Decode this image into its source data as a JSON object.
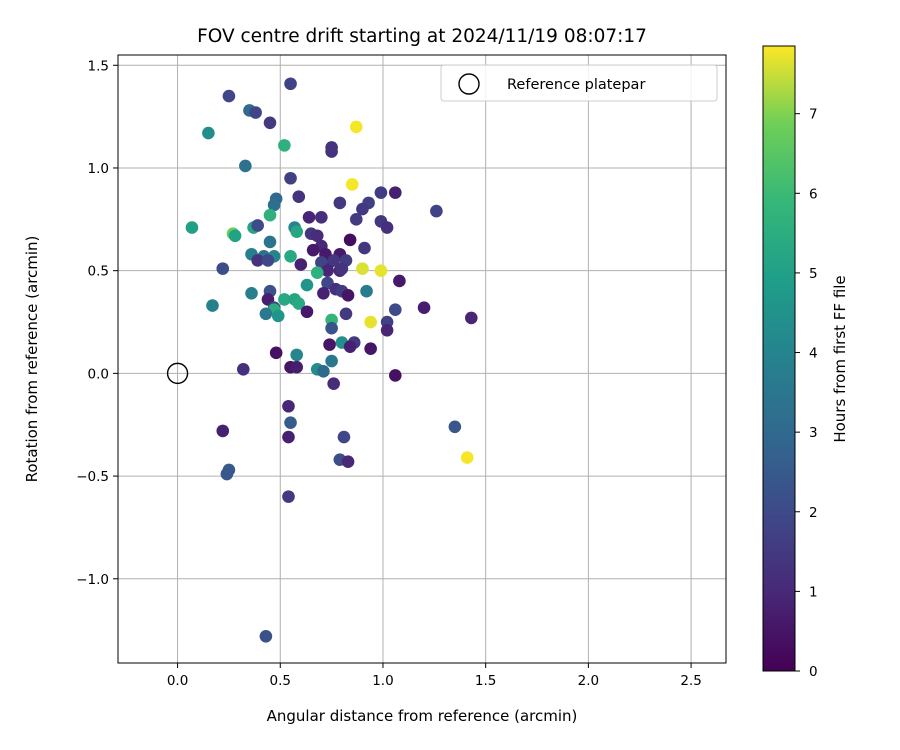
{
  "chart_data": {
    "type": "scatter",
    "title": "FOV centre drift starting at 2024/11/19 08:07:17",
    "xlabel": "Angular distance from reference (arcmin)",
    "ylabel": "Rotation from reference (arcmin)",
    "xlim": [
      -0.29,
      2.67
    ],
    "ylim": [
      -1.41,
      1.55
    ],
    "xticks": [
      "0.0",
      "0.5",
      "1.0",
      "1.5",
      "2.0",
      "2.5"
    ],
    "yticks": [
      "1.5",
      "1.0",
      "0.5",
      "0.0",
      "−0.5",
      "−1.0"
    ],
    "grid": true,
    "legend": {
      "position": "top-right",
      "label": "Reference platepar"
    },
    "colorbar": {
      "label": "Hours from first FF file",
      "range": [
        0,
        7.85
      ],
      "ticks": [
        "0",
        "1",
        "2",
        "3",
        "4",
        "5",
        "6",
        "7"
      ],
      "colormap": "viridis"
    },
    "reference_point": {
      "x": 0.0,
      "y": 0.0
    },
    "points": [
      {
        "x": 0.55,
        "y": 1.41,
        "h": 1.8
      },
      {
        "x": 0.25,
        "y": 1.35,
        "h": 1.9
      },
      {
        "x": 0.35,
        "y": 1.28,
        "h": 3.1
      },
      {
        "x": 0.38,
        "y": 1.27,
        "h": 1.9
      },
      {
        "x": 0.45,
        "y": 1.22,
        "h": 1.5
      },
      {
        "x": 0.15,
        "y": 1.17,
        "h": 4.3
      },
      {
        "x": 0.52,
        "y": 1.11,
        "h": 5.6
      },
      {
        "x": 0.75,
        "y": 1.1,
        "h": 1.3
      },
      {
        "x": 0.75,
        "y": 1.08,
        "h": 1.3
      },
      {
        "x": 0.87,
        "y": 1.2,
        "h": 7.8
      },
      {
        "x": 0.33,
        "y": 1.01,
        "h": 3.3
      },
      {
        "x": 0.55,
        "y": 0.95,
        "h": 1.7
      },
      {
        "x": 0.85,
        "y": 0.92,
        "h": 7.8
      },
      {
        "x": 0.99,
        "y": 0.88,
        "h": 1.6
      },
      {
        "x": 1.06,
        "y": 0.88,
        "h": 0.8
      },
      {
        "x": 0.48,
        "y": 0.85,
        "h": 3.0
      },
      {
        "x": 0.59,
        "y": 0.86,
        "h": 1.3
      },
      {
        "x": 0.47,
        "y": 0.82,
        "h": 3.2
      },
      {
        "x": 0.79,
        "y": 0.83,
        "h": 1.4
      },
      {
        "x": 0.93,
        "y": 0.83,
        "h": 1.7
      },
      {
        "x": 0.9,
        "y": 0.8,
        "h": 1.5
      },
      {
        "x": 1.26,
        "y": 0.79,
        "h": 1.8
      },
      {
        "x": 0.45,
        "y": 0.77,
        "h": 5.6
      },
      {
        "x": 0.64,
        "y": 0.76,
        "h": 0.9
      },
      {
        "x": 0.7,
        "y": 0.76,
        "h": 1.2
      },
      {
        "x": 0.87,
        "y": 0.75,
        "h": 1.6
      },
      {
        "x": 0.99,
        "y": 0.74,
        "h": 1.4
      },
      {
        "x": 1.02,
        "y": 0.71,
        "h": 1.2
      },
      {
        "x": 0.07,
        "y": 0.71,
        "h": 5.0
      },
      {
        "x": 0.37,
        "y": 0.71,
        "h": 5.2
      },
      {
        "x": 0.39,
        "y": 0.72,
        "h": 2.0
      },
      {
        "x": 0.57,
        "y": 0.71,
        "h": 4.0
      },
      {
        "x": 0.58,
        "y": 0.69,
        "h": 5.2
      },
      {
        "x": 0.27,
        "y": 0.68,
        "h": 6.8
      },
      {
        "x": 0.28,
        "y": 0.67,
        "h": 5.1
      },
      {
        "x": 0.65,
        "y": 0.68,
        "h": 1.4
      },
      {
        "x": 0.68,
        "y": 0.67,
        "h": 1.1
      },
      {
        "x": 0.45,
        "y": 0.64,
        "h": 3.4
      },
      {
        "x": 0.84,
        "y": 0.65,
        "h": 0.3
      },
      {
        "x": 0.7,
        "y": 0.62,
        "h": 1.0
      },
      {
        "x": 0.91,
        "y": 0.61,
        "h": 1.4
      },
      {
        "x": 0.66,
        "y": 0.6,
        "h": 0.6
      },
      {
        "x": 0.72,
        "y": 0.58,
        "h": 0.6
      },
      {
        "x": 0.79,
        "y": 0.58,
        "h": 0.6
      },
      {
        "x": 0.36,
        "y": 0.58,
        "h": 3.8
      },
      {
        "x": 0.42,
        "y": 0.57,
        "h": 3.3
      },
      {
        "x": 0.47,
        "y": 0.57,
        "h": 4.0
      },
      {
        "x": 0.55,
        "y": 0.57,
        "h": 5.3
      },
      {
        "x": 0.39,
        "y": 0.55,
        "h": 1.3
      },
      {
        "x": 0.44,
        "y": 0.55,
        "h": 1.9
      },
      {
        "x": 0.74,
        "y": 0.54,
        "h": 0.6
      },
      {
        "x": 0.76,
        "y": 0.55,
        "h": 1.4
      },
      {
        "x": 0.82,
        "y": 0.55,
        "h": 1.6
      },
      {
        "x": 0.7,
        "y": 0.54,
        "h": 1.8
      },
      {
        "x": 0.6,
        "y": 0.53,
        "h": 0.8
      },
      {
        "x": 0.22,
        "y": 0.51,
        "h": 2.1
      },
      {
        "x": 0.79,
        "y": 0.5,
        "h": 1.0
      },
      {
        "x": 0.73,
        "y": 0.5,
        "h": 0.9
      },
      {
        "x": 0.8,
        "y": 0.51,
        "h": 1.3
      },
      {
        "x": 0.9,
        "y": 0.51,
        "h": 7.6
      },
      {
        "x": 0.99,
        "y": 0.5,
        "h": 7.7
      },
      {
        "x": 0.68,
        "y": 0.49,
        "h": 5.6
      },
      {
        "x": 1.08,
        "y": 0.45,
        "h": 0.6
      },
      {
        "x": 0.73,
        "y": 0.44,
        "h": 1.9
      },
      {
        "x": 0.63,
        "y": 0.43,
        "h": 4.6
      },
      {
        "x": 0.77,
        "y": 0.41,
        "h": 1.2
      },
      {
        "x": 0.8,
        "y": 0.4,
        "h": 1.6
      },
      {
        "x": 0.83,
        "y": 0.38,
        "h": 0.5
      },
      {
        "x": 0.71,
        "y": 0.39,
        "h": 0.8
      },
      {
        "x": 0.36,
        "y": 0.39,
        "h": 3.8
      },
      {
        "x": 0.45,
        "y": 0.4,
        "h": 2.2
      },
      {
        "x": 0.92,
        "y": 0.4,
        "h": 3.7
      },
      {
        "x": 0.52,
        "y": 0.36,
        "h": 5.3
      },
      {
        "x": 0.57,
        "y": 0.36,
        "h": 5.2
      },
      {
        "x": 0.59,
        "y": 0.34,
        "h": 5.3
      },
      {
        "x": 0.44,
        "y": 0.36,
        "h": 0.7
      },
      {
        "x": 0.17,
        "y": 0.33,
        "h": 3.9
      },
      {
        "x": 0.47,
        "y": 0.32,
        "h": 1.7
      },
      {
        "x": 0.47,
        "y": 0.31,
        "h": 5.5
      },
      {
        "x": 0.63,
        "y": 0.3,
        "h": 0.6
      },
      {
        "x": 0.43,
        "y": 0.29,
        "h": 3.6
      },
      {
        "x": 0.49,
        "y": 0.28,
        "h": 4.6
      },
      {
        "x": 0.82,
        "y": 0.29,
        "h": 1.5
      },
      {
        "x": 1.06,
        "y": 0.31,
        "h": 2.0
      },
      {
        "x": 1.2,
        "y": 0.32,
        "h": 0.7
      },
      {
        "x": 0.75,
        "y": 0.26,
        "h": 5.8
      },
      {
        "x": 0.94,
        "y": 0.25,
        "h": 7.7
      },
      {
        "x": 1.02,
        "y": 0.25,
        "h": 1.7
      },
      {
        "x": 1.43,
        "y": 0.27,
        "h": 0.9
      },
      {
        "x": 0.75,
        "y": 0.22,
        "h": 2.3
      },
      {
        "x": 1.02,
        "y": 0.21,
        "h": 0.9
      },
      {
        "x": 0.8,
        "y": 0.15,
        "h": 4.4
      },
      {
        "x": 0.86,
        "y": 0.15,
        "h": 1.5
      },
      {
        "x": 0.74,
        "y": 0.14,
        "h": 0.5
      },
      {
        "x": 0.84,
        "y": 0.13,
        "h": 0.8
      },
      {
        "x": 0.94,
        "y": 0.12,
        "h": 0.5
      },
      {
        "x": 0.48,
        "y": 0.1,
        "h": 0.4
      },
      {
        "x": 0.58,
        "y": 0.09,
        "h": 4.1
      },
      {
        "x": 0.75,
        "y": 0.06,
        "h": 3.5
      },
      {
        "x": 0.55,
        "y": 0.03,
        "h": 0.5
      },
      {
        "x": 0.58,
        "y": 0.03,
        "h": 0.7
      },
      {
        "x": 0.68,
        "y": 0.02,
        "h": 4.3
      },
      {
        "x": 0.71,
        "y": 0.01,
        "h": 3.0
      },
      {
        "x": 0.32,
        "y": 0.02,
        "h": 1.2
      },
      {
        "x": 1.06,
        "y": -0.01,
        "h": 0.4
      },
      {
        "x": 0.76,
        "y": -0.05,
        "h": 1.1
      },
      {
        "x": 0.54,
        "y": -0.16,
        "h": 1.0
      },
      {
        "x": 0.55,
        "y": -0.24,
        "h": 2.6
      },
      {
        "x": 1.35,
        "y": -0.26,
        "h": 2.4
      },
      {
        "x": 0.22,
        "y": -0.28,
        "h": 0.8
      },
      {
        "x": 0.54,
        "y": -0.31,
        "h": 0.8
      },
      {
        "x": 0.81,
        "y": -0.31,
        "h": 1.9
      },
      {
        "x": 0.79,
        "y": -0.42,
        "h": 2.1
      },
      {
        "x": 0.83,
        "y": -0.43,
        "h": 1.0
      },
      {
        "x": 1.41,
        "y": -0.41,
        "h": 7.8
      },
      {
        "x": 0.25,
        "y": -0.47,
        "h": 2.5
      },
      {
        "x": 0.24,
        "y": -0.49,
        "h": 2.4
      },
      {
        "x": 0.54,
        "y": -0.6,
        "h": 1.5
      },
      {
        "x": 0.43,
        "y": -1.28,
        "h": 2.2
      }
    ]
  }
}
